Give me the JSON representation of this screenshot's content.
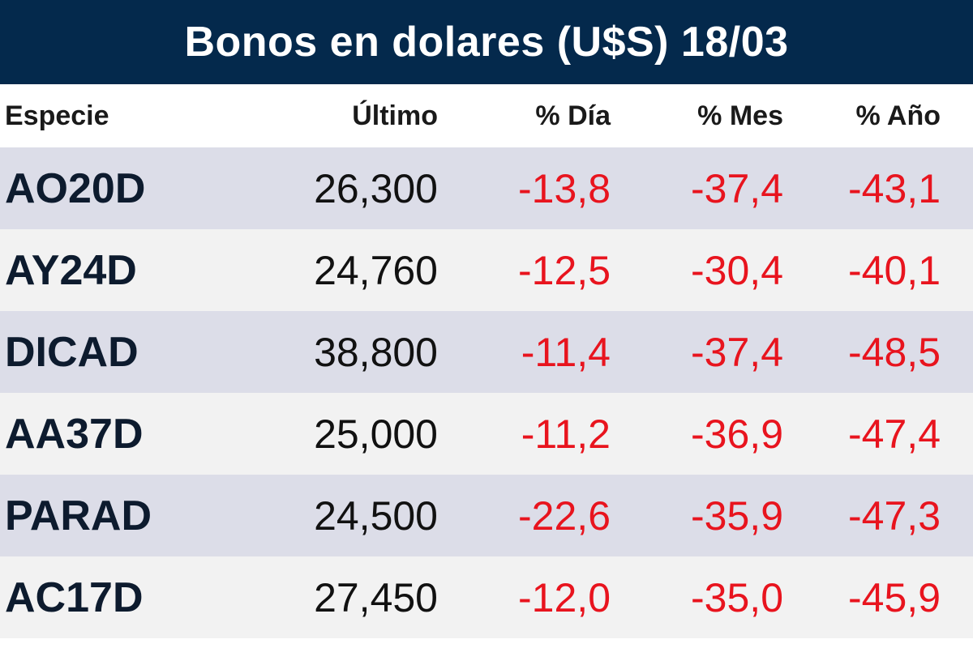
{
  "title": "Bonos en dolares (U$S) 18/03",
  "headers": {
    "especie": "Especie",
    "ultimo": "Último",
    "dia": "% Día",
    "mes": "% Mes",
    "anio": "% Año"
  },
  "rows": [
    {
      "especie": "AO20D",
      "ultimo": "26,300",
      "dia": "-13,8",
      "mes": "-37,4",
      "anio": "-43,1"
    },
    {
      "especie": "AY24D",
      "ultimo": "24,760",
      "dia": "-12,5",
      "mes": "-30,4",
      "anio": "-40,1"
    },
    {
      "especie": "DICAD",
      "ultimo": "38,800",
      "dia": "-11,4",
      "mes": "-37,4",
      "anio": "-48,5"
    },
    {
      "especie": "AA37D",
      "ultimo": "25,000",
      "dia": "-11,2",
      "mes": "-36,9",
      "anio": "-47,4"
    },
    {
      "especie": "PARAD",
      "ultimo": "24,500",
      "dia": "-22,6",
      "mes": "-35,9",
      "anio": "-47,3"
    },
    {
      "especie": "AC17D",
      "ultimo": "27,450",
      "dia": "-12,0",
      "mes": "-35,0",
      "anio": "-45,9"
    }
  ],
  "colors": {
    "header_bg": "#04294c",
    "negative": "#e8141e",
    "row_alt_a": "#dcdde8",
    "row_alt_b": "#f2f2f2"
  }
}
